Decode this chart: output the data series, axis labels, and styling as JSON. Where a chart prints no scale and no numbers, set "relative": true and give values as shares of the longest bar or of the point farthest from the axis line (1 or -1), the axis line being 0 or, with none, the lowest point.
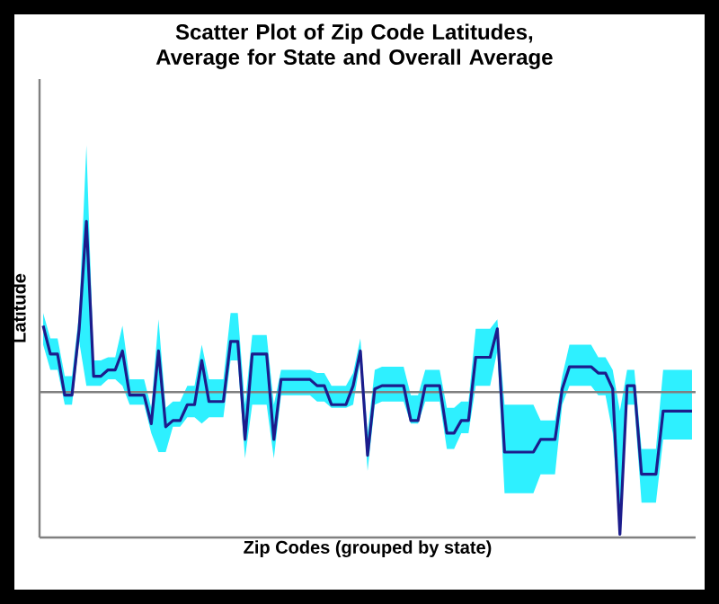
{
  "chart_data": {
    "type": "line",
    "title": "Scatter Plot of Zip Code Latitudes, Average for State and Overall Average",
    "xlabel": "Zip Codes (grouped by state)",
    "ylabel": "Latitude",
    "relative": true,
    "categories": [
      null,
      null,
      null,
      null,
      null,
      null,
      null,
      null,
      null,
      null,
      null,
      null,
      null,
      null,
      null,
      null,
      null,
      null,
      null,
      null,
      null,
      null,
      null,
      null,
      null,
      null,
      null,
      null,
      null,
      null,
      null,
      null,
      null,
      null,
      null,
      null,
      null,
      null,
      null,
      null,
      null,
      null,
      null,
      null,
      null,
      null,
      null,
      null,
      null,
      null,
      null,
      null,
      null,
      null,
      null,
      null,
      null,
      null,
      null,
      null,
      null,
      null,
      null,
      null,
      null,
      null,
      null,
      null,
      null,
      null,
      null,
      null,
      null,
      null,
      null,
      null,
      null,
      null,
      null,
      null,
      null,
      null,
      null,
      null,
      null,
      null,
      null,
      null,
      null,
      null,
      null
    ],
    "series": [
      {
        "color": "#1c1c8c",
        "values": [
          0.67,
          0.58,
          0.58,
          0.45,
          0.45,
          0.66,
          1,
          0.51,
          0.51,
          0.53,
          0.53,
          0.59,
          0.45,
          0.45,
          0.45,
          0.36,
          0.59,
          0.35,
          0.37,
          0.37,
          0.42,
          0.42,
          0.56,
          0.43,
          0.43,
          0.43,
          0.62,
          0.62,
          0.31,
          0.58,
          0.58,
          0.58,
          0.31,
          0.5,
          0.5,
          0.5,
          0.5,
          0.5,
          0.48,
          0.48,
          0.42,
          0.42,
          0.42,
          0.48,
          0.59,
          0.26,
          0.47,
          0.48,
          0.48,
          0.48,
          0.48,
          0.37,
          0.37,
          0.48,
          0.48,
          0.48,
          0.33,
          0.33,
          0.37,
          0.37,
          0.57,
          0.57,
          0.57,
          0.66,
          0.27,
          0.27,
          0.27,
          0.27,
          0.27,
          0.31,
          0.31,
          0.31,
          0.47,
          0.54,
          0.54,
          0.54,
          0.54,
          0.52,
          0.52,
          0.47,
          0.01,
          0.48,
          0.48,
          0.2,
          0.2,
          0.2,
          0.4,
          0.4,
          0.4,
          0.4,
          0.4
        ],
        "lower": [
          0.61,
          0.53,
          0.53,
          0.42,
          0.42,
          0.62,
          0.48,
          0.48,
          0.48,
          0.5,
          0.5,
          0.48,
          0.42,
          0.42,
          0.42,
          0.33,
          0.27,
          0.27,
          0.35,
          0.35,
          0.38,
          0.38,
          0.36,
          0.38,
          0.38,
          0.38,
          0.56,
          0.56,
          0.25,
          0.42,
          0.42,
          0.42,
          0.25,
          0.45,
          0.45,
          0.45,
          0.45,
          0.45,
          0.43,
          0.43,
          0.41,
          0.41,
          0.41,
          0.42,
          0.56,
          0.21,
          0.42,
          0.43,
          0.43,
          0.43,
          0.43,
          0.36,
          0.36,
          0.43,
          0.43,
          0.43,
          0.28,
          0.28,
          0.33,
          0.33,
          0.48,
          0.48,
          0.48,
          0.59,
          0.14,
          0.14,
          0.14,
          0.14,
          0.14,
          0.2,
          0.2,
          0.2,
          0.42,
          0.48,
          0.48,
          0.48,
          0.48,
          0.45,
          0.45,
          0.33,
          0.01,
          0.42,
          0.42,
          0.11,
          0.11,
          0.11,
          0.31,
          0.31,
          0.31,
          0.31,
          0.31
        ],
        "upper": [
          0.71,
          0.63,
          0.63,
          0.51,
          0.51,
          0.71,
          1.24,
          0.56,
          0.56,
          0.57,
          0.57,
          0.67,
          0.5,
          0.5,
          0.5,
          0.41,
          0.69,
          0.41,
          0.43,
          0.43,
          0.48,
          0.48,
          0.61,
          0.5,
          0.5,
          0.5,
          0.71,
          0.71,
          0.42,
          0.64,
          0.64,
          0.64,
          0.42,
          0.53,
          0.53,
          0.53,
          0.53,
          0.53,
          0.52,
          0.52,
          0.48,
          0.48,
          0.48,
          0.52,
          0.63,
          0.33,
          0.53,
          0.54,
          0.54,
          0.54,
          0.54,
          0.45,
          0.45,
          0.53,
          0.53,
          0.53,
          0.41,
          0.41,
          0.43,
          0.43,
          0.66,
          0.66,
          0.66,
          0.69,
          0.42,
          0.42,
          0.42,
          0.42,
          0.42,
          0.37,
          0.37,
          0.37,
          0.51,
          0.61,
          0.61,
          0.61,
          0.61,
          0.57,
          0.57,
          0.53,
          0.4,
          0.53,
          0.53,
          0.28,
          0.28,
          0.28,
          0.53,
          0.53,
          0.53,
          0.53,
          0.53
        ]
      }
    ],
    "ref_lines": [
      {
        "axis": "y",
        "value": 0.46,
        "color": "#808080"
      }
    ]
  }
}
